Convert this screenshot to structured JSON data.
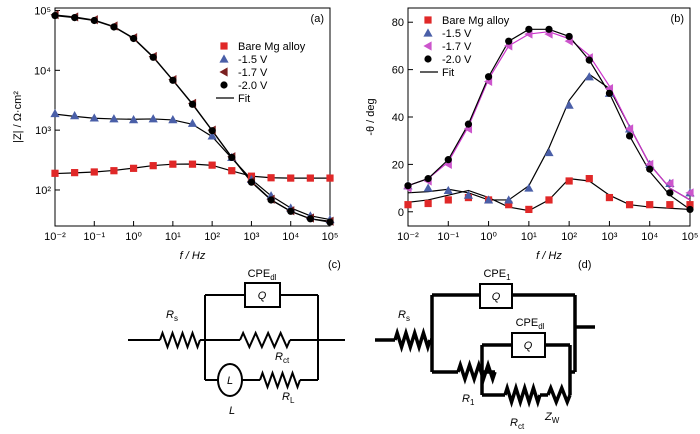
{
  "chart_data": [
    {
      "type": "line",
      "panel": "(a)",
      "x_label": "f / Hz",
      "y_label": "|Z| / Ω·cm²",
      "xlog": true,
      "ylog": true,
      "xlim": [
        0.01,
        100000
      ],
      "ylim": [
        25,
        110000
      ],
      "xticks": [
        {
          "value": 0.01,
          "label": "10⁻²"
        },
        {
          "value": 0.1,
          "label": "10⁻¹"
        },
        {
          "value": 1,
          "label": "10⁰"
        },
        {
          "value": 10,
          "label": "10¹"
        },
        {
          "value": 100,
          "label": "10²"
        },
        {
          "value": 1000,
          "label": "10³"
        },
        {
          "value": 10000,
          "label": "10⁴"
        },
        {
          "value": 100000,
          "label": "10⁵"
        }
      ],
      "yticks": [
        {
          "value": 100,
          "label": "10²"
        },
        {
          "value": 1000,
          "label": "10³"
        },
        {
          "value": 10000,
          "label": "10⁴"
        },
        {
          "value": 100000,
          "label": "10⁵"
        }
      ],
      "legend": "center right",
      "fit_name": "Fit",
      "fit_color": "#000000",
      "x": [
        0.01,
        0.0316,
        0.1,
        0.316,
        1,
        3.16,
        10,
        31.6,
        100,
        316,
        1000,
        3162,
        10000,
        31623,
        100000
      ],
      "series": [
        {
          "name": "Bare Mg alloy",
          "color": "#e02828",
          "marker": "square",
          "values": [
            190,
            195,
            200,
            210,
            230,
            255,
            270,
            270,
            260,
            210,
            170,
            160,
            158,
            158,
            158
          ],
          "fit_values": [
            188,
            193,
            200,
            212,
            232,
            256,
            270,
            272,
            258,
            208,
            170,
            160,
            158,
            158,
            158
          ]
        },
        {
          "name": "-1.5 V",
          "color": "#4a5fa8",
          "marker": "triangle",
          "values": [
            1900,
            1750,
            1600,
            1550,
            1500,
            1550,
            1500,
            1300,
            800,
            350,
            150,
            80,
            50,
            37,
            32
          ],
          "fit_values": [
            1850,
            1700,
            1580,
            1540,
            1520,
            1540,
            1480,
            1250,
            780,
            340,
            150,
            80,
            50,
            37,
            32
          ]
        },
        {
          "name": "-1.7 V",
          "color": "#7a2020",
          "marker": "triangle-left",
          "values": [
            85000,
            78000,
            70000,
            55000,
            35000,
            17000,
            7000,
            2800,
            1000,
            360,
            140,
            70,
            45,
            34,
            30
          ],
          "fit_values": [
            84000,
            78000,
            69000,
            54000,
            34500,
            16800,
            6900,
            2750,
            990,
            355,
            138,
            69,
            44,
            33,
            30
          ]
        },
        {
          "name": "-2.0 V",
          "color": "#000000",
          "marker": "circle",
          "values": [
            82000,
            76000,
            68000,
            53000,
            34000,
            16500,
            6800,
            2700,
            980,
            350,
            135,
            68,
            44,
            33,
            29
          ],
          "fit_values": [
            82000,
            76000,
            68000,
            53000,
            34000,
            16500,
            6800,
            2700,
            980,
            350,
            135,
            68,
            44,
            33,
            29
          ]
        }
      ]
    },
    {
      "type": "line",
      "panel": "(b)",
      "x_label": "f / Hz",
      "y_label": "-θ / deg",
      "xlog": true,
      "ylog": false,
      "xlim": [
        0.01,
        100000
      ],
      "ylim": [
        -6,
        86
      ],
      "xticks": [
        {
          "value": 0.01,
          "label": "10⁻²"
        },
        {
          "value": 0.1,
          "label": "10⁻¹"
        },
        {
          "value": 1,
          "label": "10⁰"
        },
        {
          "value": 10,
          "label": "10¹"
        },
        {
          "value": 100,
          "label": "10²"
        },
        {
          "value": 1000,
          "label": "10³"
        },
        {
          "value": 10000,
          "label": "10⁴"
        },
        {
          "value": 100000,
          "label": "10⁵"
        }
      ],
      "yticks": [
        0,
        20,
        40,
        60,
        80
      ],
      "legend": "upper left",
      "fit_name": "Fit",
      "fit_color": "#000000",
      "x": [
        0.01,
        0.0316,
        0.1,
        0.316,
        1,
        3.16,
        10,
        31.6,
        100,
        316,
        1000,
        3162,
        10000,
        31623,
        100000
      ],
      "series": [
        {
          "name": "Bare Mg alloy",
          "color": "#e02828",
          "marker": "square",
          "values": [
            3,
            3.5,
            5,
            6,
            5,
            3,
            1,
            5,
            13,
            14,
            6,
            3,
            3,
            3,
            3
          ],
          "fit_values": [
            4,
            5,
            7,
            9,
            6,
            2,
            0.5,
            5,
            14,
            13,
            7,
            3,
            2,
            1.5,
            1
          ]
        },
        {
          "name": "-1.5 V",
          "color": "#4a5fa8",
          "marker": "triangle",
          "values": [
            11,
            10,
            9,
            7,
            5,
            5,
            10,
            25,
            45,
            57,
            50,
            35,
            20,
            12,
            8
          ],
          "fit_values": [
            8,
            8.5,
            9.5,
            8,
            5,
            5,
            11,
            27,
            47,
            58,
            52,
            36,
            20,
            10,
            5
          ]
        },
        {
          "name": "-1.7 V",
          "color": "#cc55cc",
          "marker": "triangle-left",
          "fit_color": "#cc33cc",
          "values": [
            10,
            13,
            20,
            35,
            55,
            70,
            75,
            75,
            72,
            65,
            52,
            35,
            20,
            12,
            8
          ],
          "fit_values": [
            11,
            14,
            21,
            36,
            56,
            70,
            75,
            76,
            73,
            66,
            53,
            36,
            20,
            10,
            5
          ]
        },
        {
          "name": "-2.0 V",
          "color": "#000000",
          "marker": "circle",
          "values": [
            11,
            14,
            22,
            37,
            57,
            72,
            77,
            77,
            74,
            64,
            50,
            32,
            18,
            8,
            1
          ],
          "fit_values": [
            11,
            14,
            22,
            37,
            57,
            72,
            77,
            77,
            74,
            64,
            50,
            32,
            17,
            7,
            1
          ]
        }
      ]
    }
  ],
  "circuits": {
    "c": {
      "panel": "(c)",
      "cpe": {
        "main": "CPE",
        "sub": "dl"
      },
      "q": "Q",
      "rs": {
        "main": "R",
        "sub": "s"
      },
      "rct": {
        "main": "R",
        "sub": "ct"
      },
      "l_inside": "L",
      "l_below": "L",
      "rl": {
        "main": "R",
        "sub": "L"
      }
    },
    "d": {
      "panel": "(d)",
      "cpe1": {
        "main": "CPE",
        "sub": "1"
      },
      "q1": "Q",
      "cpedl": {
        "main": "CPE",
        "sub": "dl"
      },
      "q2": "Q",
      "rs": {
        "main": "R",
        "sub": "s"
      },
      "r1": {
        "main": "R",
        "sub": "1"
      },
      "rct": {
        "main": "R",
        "sub": "ct"
      },
      "zw": {
        "main": "Z",
        "sub": "W"
      },
      "w": "W"
    }
  }
}
